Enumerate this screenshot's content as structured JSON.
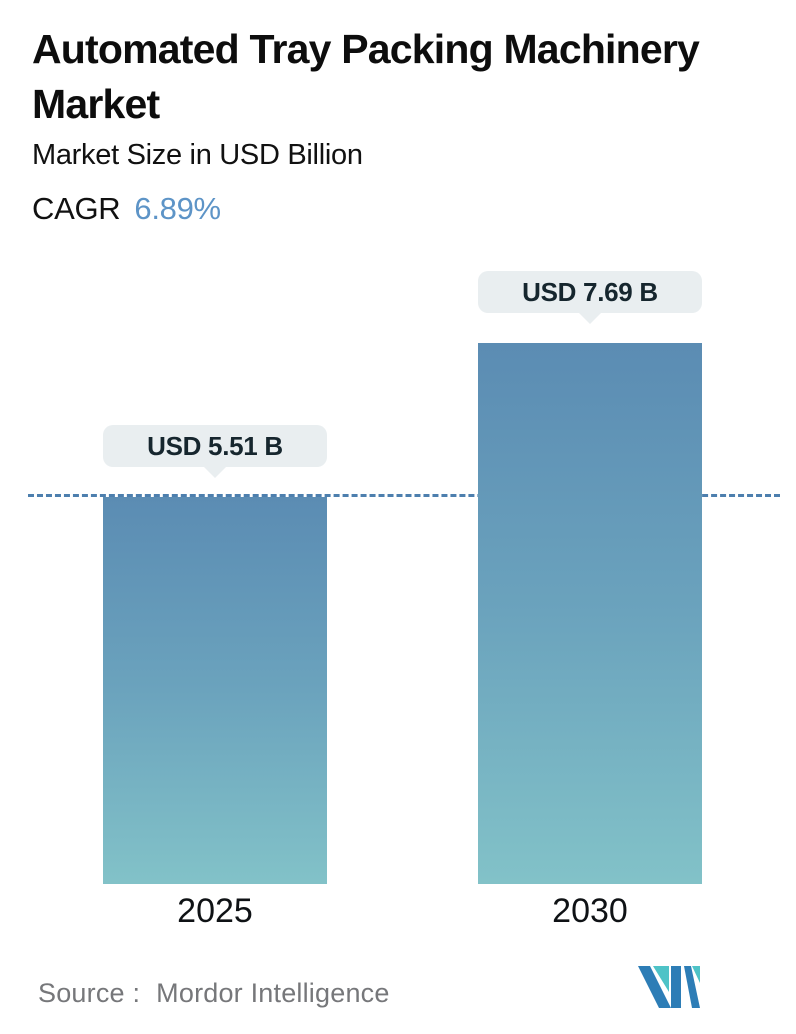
{
  "header": {
    "title": "Automated Tray Packing Machinery Market",
    "subtitle": "Market Size in USD Billion",
    "cagr_label": "CAGR",
    "cagr_value": "6.89%"
  },
  "chart_data": {
    "type": "bar",
    "categories": [
      "2025",
      "2030"
    ],
    "values": [
      5.51,
      7.69
    ],
    "bar_labels": [
      "USD 5.51 B",
      "USD 7.69 B"
    ],
    "title": "Automated Tray Packing Machinery Market",
    "ylabel": "Market Size in USD Billion",
    "cagr": "6.89%",
    "dashed_reference_value": 5.51,
    "legend": "off",
    "grid": "off",
    "bar_gradient_top": "#5b8cb3",
    "bar_gradient_mid": "#6ba3bd",
    "bar_gradient_bottom": "#82c2c8",
    "dashed_line_color": "#4d7fae"
  },
  "footer": {
    "source_label": "Source :",
    "source_value": "Mordor Intelligence"
  },
  "colors": {
    "cagr_value_blue": "#5d94c7",
    "bubble_background": "#e9eef0",
    "text_dark": "#0d0d0d",
    "source_gray": "#76777a",
    "logo_blue": "#2d7db6",
    "logo_teal": "#4ec3c7"
  }
}
